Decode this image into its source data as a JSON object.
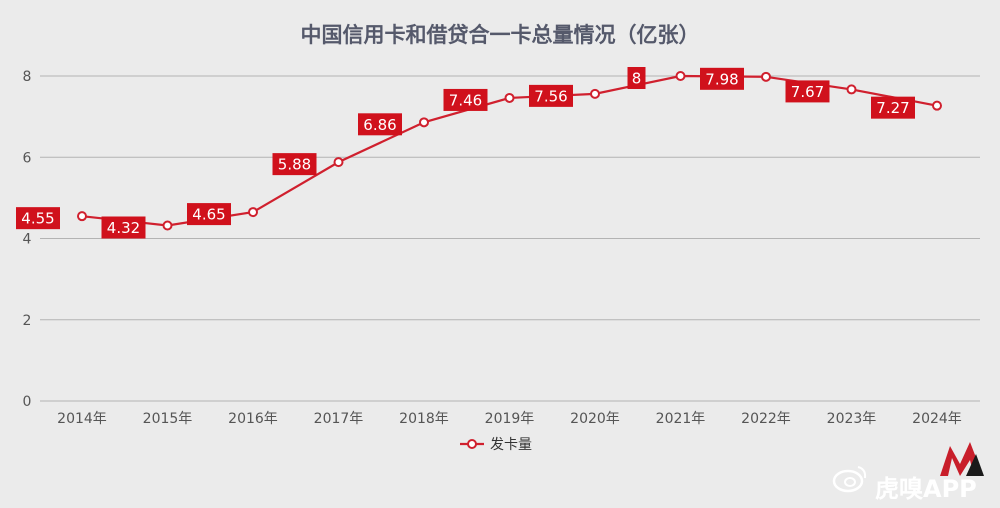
{
  "chart_data": {
    "type": "line",
    "title": "中国信用卡和借贷合一卡总量情况（亿张）",
    "categories": [
      "2014年",
      "2015年",
      "2016年",
      "2017年",
      "2018年",
      "2019年",
      "2020年",
      "2021年",
      "2022年",
      "2023年",
      "2024年"
    ],
    "series": [
      {
        "name": "发卡量",
        "values": [
          4.55,
          4.32,
          4.65,
          5.88,
          6.86,
          7.46,
          7.56,
          8,
          7.98,
          7.67,
          7.27
        ]
      }
    ],
    "data_labels": [
      "4.55",
      "4.32",
      "4.65",
      "5.88",
      "6.86",
      "7.46",
      "7.56",
      "8",
      "7.98",
      "7.67",
      "7.27"
    ],
    "yticks": [
      "0",
      "2",
      "4",
      "6",
      "8"
    ],
    "ylim": [
      0,
      8
    ],
    "grid": true,
    "legend": "bottom-center",
    "colors": {
      "line": "#d0202e",
      "label_bg": "#d0111c",
      "background": "#ebebeb"
    }
  },
  "watermark": {
    "text": "虎嗅APP"
  }
}
